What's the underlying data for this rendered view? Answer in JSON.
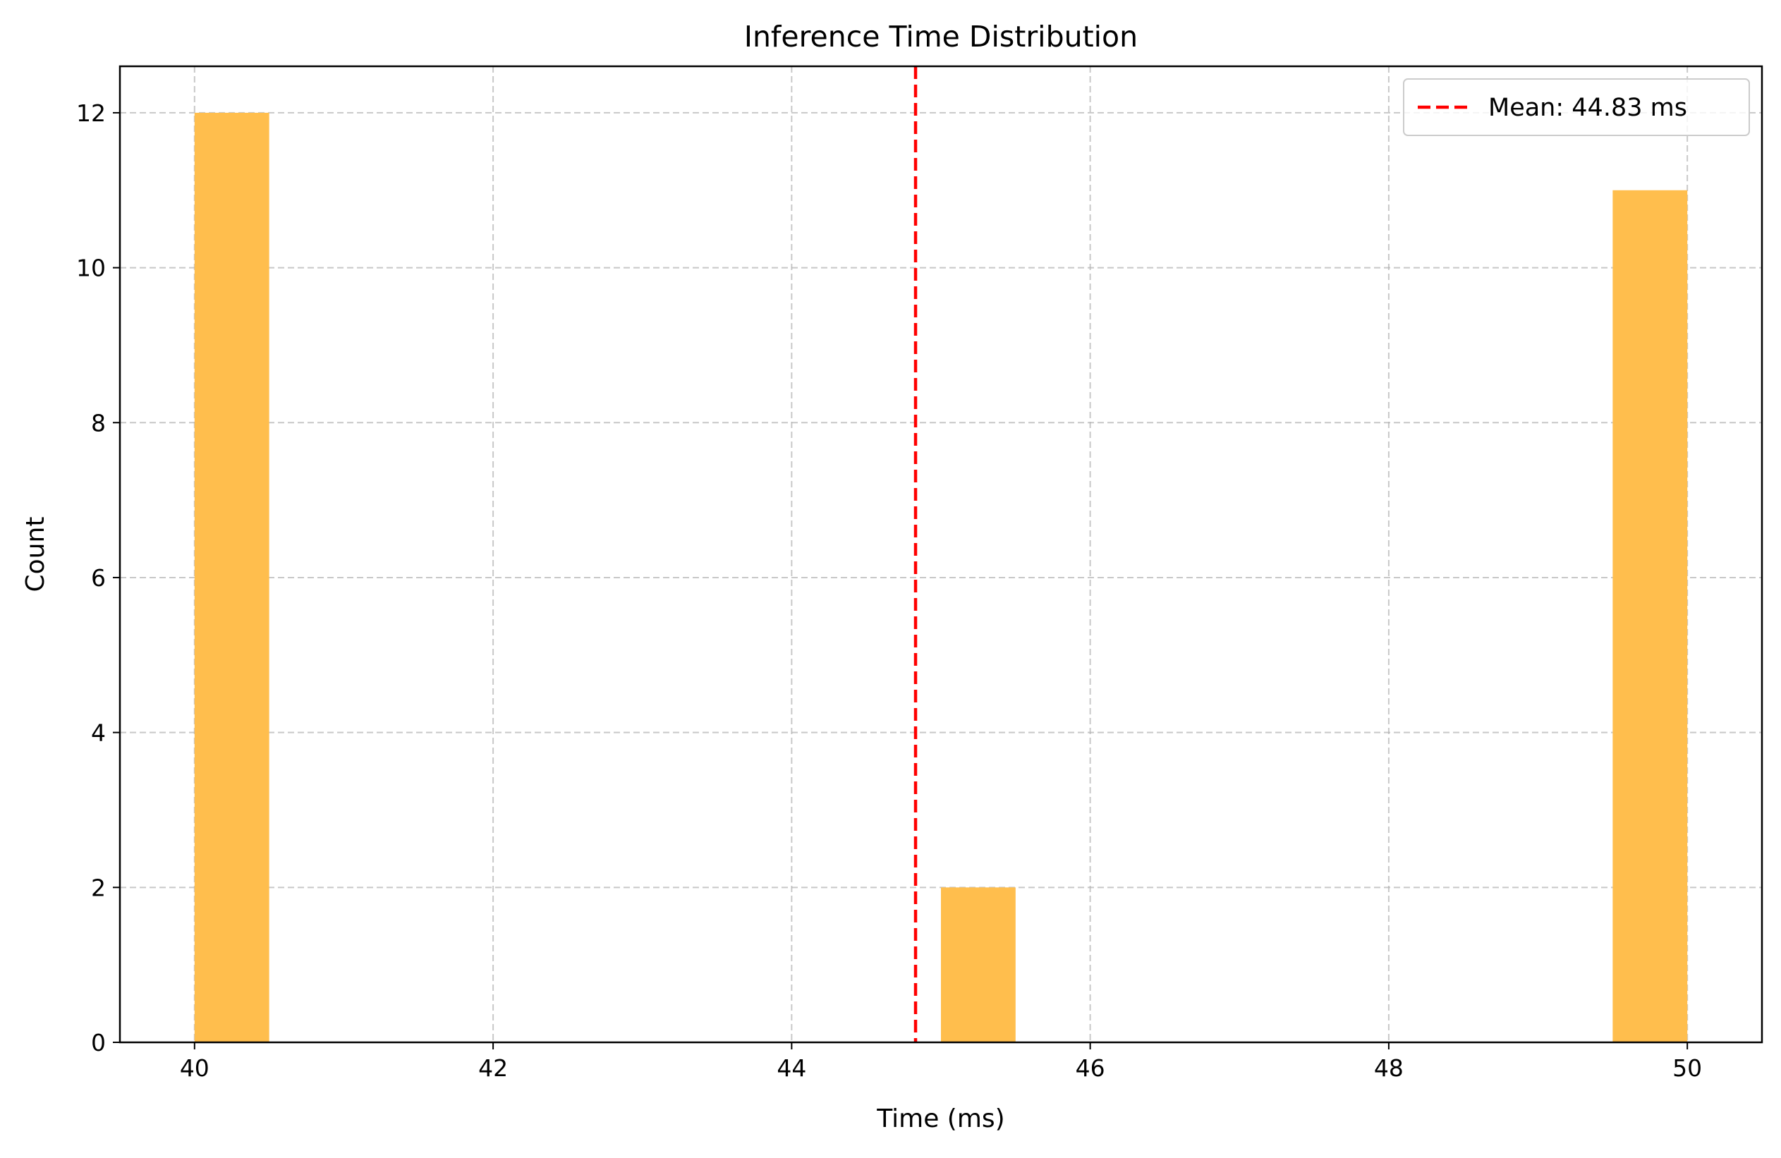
{
  "chart_data": {
    "type": "bar",
    "title": "Inference Time Distribution",
    "xlabel": "Time (ms)",
    "ylabel": "Count",
    "xlim": [
      39.5,
      50.5
    ],
    "ylim": [
      0,
      12.6
    ],
    "xticks": [
      40,
      42,
      44,
      46,
      48,
      50
    ],
    "yticks": [
      0,
      2,
      4,
      6,
      8,
      10,
      12
    ],
    "grid": true,
    "grid_style": "dashed",
    "bar_color": "#FFBE4D",
    "bins": [
      {
        "x_start": 40.0,
        "x_end": 40.5,
        "count": 12
      },
      {
        "x_start": 45.0,
        "x_end": 45.5,
        "count": 2
      },
      {
        "x_start": 49.5,
        "x_end": 50.0,
        "count": 11
      }
    ],
    "mean_line": {
      "value": 44.83,
      "color": "#FF0000",
      "style": "dashed"
    },
    "legend": {
      "position": "top-right",
      "entries": [
        "Mean: 44.83 ms"
      ]
    }
  }
}
